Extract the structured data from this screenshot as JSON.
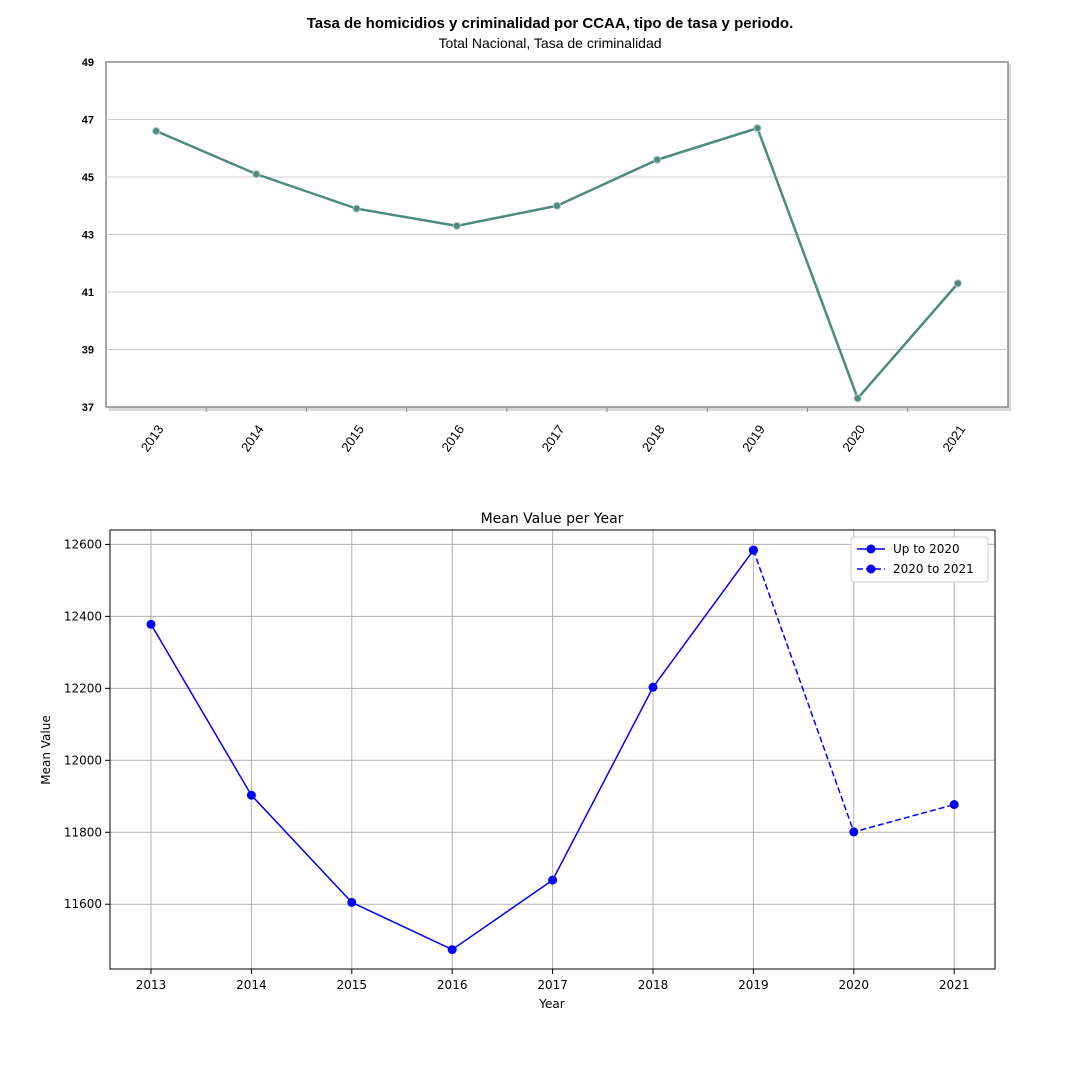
{
  "chart_data": [
    {
      "type": "line",
      "title": "Tasa de homicidios y criminalidad por CCAA, tipo de tasa y periodo.",
      "subtitle": "Total Nacional, Tasa de criminalidad",
      "x": [
        "2013",
        "2014",
        "2015",
        "2016",
        "2017",
        "2018",
        "2019",
        "2020",
        "2021"
      ],
      "series": [
        {
          "values": [
            46.6,
            45.1,
            43.9,
            43.3,
            44.0,
            45.6,
            46.7,
            37.3,
            41.3
          ]
        }
      ],
      "ylim": [
        37,
        49
      ],
      "yticks": [
        "37",
        "39",
        "41",
        "43",
        "45",
        "47",
        "49"
      ],
      "grid": "horizontal",
      "line_color": "#4e8a7e"
    },
    {
      "type": "line",
      "title": "Mean Value per Year",
      "xlabel": "Year",
      "ylabel": "Mean Value",
      "x": [
        "2013",
        "2014",
        "2015",
        "2016",
        "2017",
        "2018",
        "2019",
        "2020",
        "2021"
      ],
      "series": [
        {
          "name": "Up to 2020",
          "x": [
            "2013",
            "2014",
            "2015",
            "2016",
            "2017",
            "2018",
            "2019"
          ],
          "values": [
            12378,
            11903,
            11605,
            11474,
            11667,
            12203,
            12584
          ],
          "style": "solid"
        },
        {
          "name": "2020 to 2021",
          "x": [
            "2019",
            "2020",
            "2021"
          ],
          "values": [
            12584,
            11801,
            11877
          ],
          "style": "dashed"
        }
      ],
      "ylim": [
        11420,
        12640
      ],
      "yticks": [
        "11600",
        "11800",
        "12000",
        "12200",
        "12400",
        "12600"
      ],
      "grid": true,
      "legend": "top-right",
      "line_color": "#0000ff"
    }
  ]
}
